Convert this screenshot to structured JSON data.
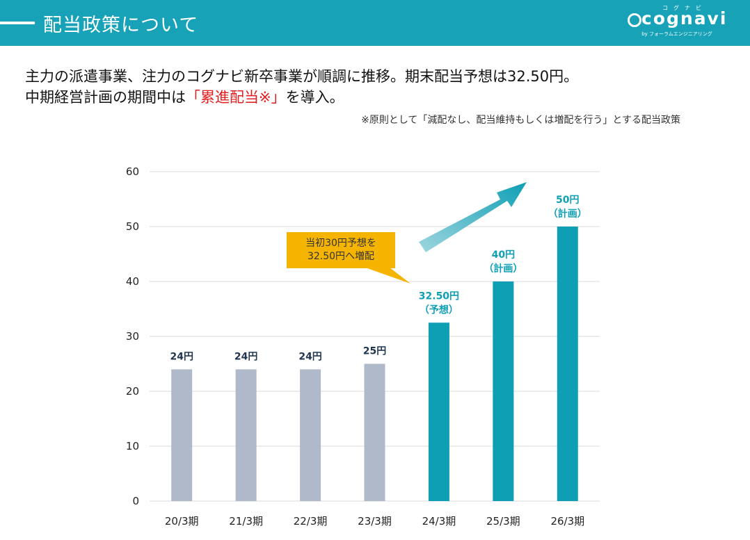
{
  "header": {
    "title": "配当政策について",
    "logo_kana": "コグナビ",
    "logo_word": "cognavi",
    "logo_sub": "by フォーラムエンジニアリング"
  },
  "headline": {
    "line1": "主力の派遣事業、注力のコグナビ新卒事業が順調に推移。期末配当予想は32.50円。",
    "line2_pre": "中期経営計画の期間中は",
    "line2_accent": "「累進配当※」",
    "line2_post": "を導入。"
  },
  "note": "※原則として「減配なし、配当維持もしくは増配を行う」とする配当政策",
  "callout": {
    "line1": "当初30円予想を",
    "line2": "32.50円へ増配"
  },
  "colors": {
    "header": "#17a2b8",
    "bar_past": "#b0b9c9",
    "bar_future": "#0e9fb5",
    "label_past": "#1f3550",
    "label_future": "#0e9fb5",
    "callout": "#f5b400",
    "accent": "#e02020"
  },
  "chart_data": {
    "type": "bar",
    "categories": [
      "20/3期",
      "21/3期",
      "22/3期",
      "23/3期",
      "24/3期",
      "25/3期",
      "26/3期"
    ],
    "values": [
      24,
      24,
      24,
      25,
      32.5,
      40,
      50
    ],
    "value_labels": [
      [
        "24円"
      ],
      [
        "24円"
      ],
      [
        "24円"
      ],
      [
        "25円"
      ],
      [
        "32.50円",
        "（予想）"
      ],
      [
        "40円",
        "（計画）"
      ],
      [
        "50円",
        "（計画）"
      ]
    ],
    "highlighted": [
      false,
      false,
      false,
      false,
      true,
      true,
      true
    ],
    "ylim": [
      0,
      60
    ],
    "yticks": [
      0,
      10,
      20,
      30,
      40,
      50,
      60
    ],
    "grid": true,
    "xlabel": "",
    "ylabel": ""
  }
}
